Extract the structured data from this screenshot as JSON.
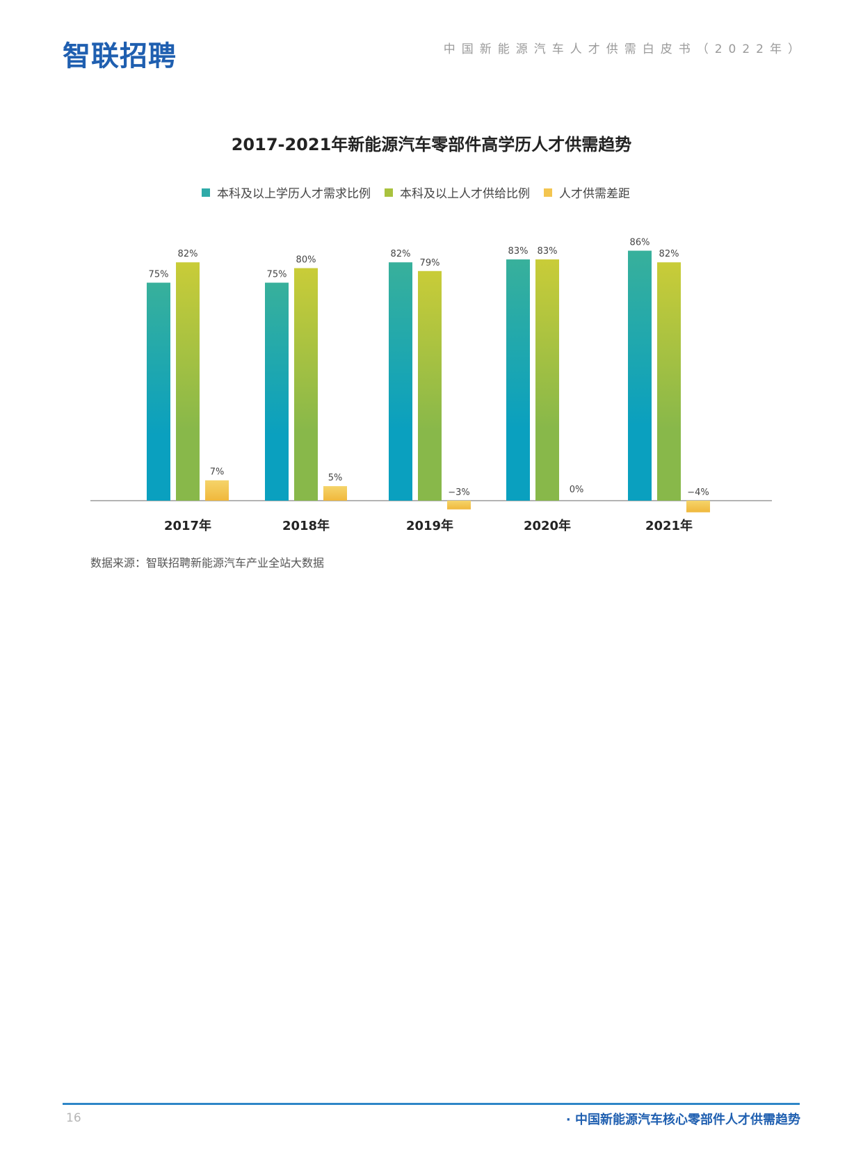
{
  "header": {
    "logo_text": "智联招聘",
    "doc_title": "中国新能源汽车人才供需白皮书（2022年）"
  },
  "chart_data": {
    "type": "bar",
    "title": "2017-2021年新能源汽车零部件高学历人才供需趋势",
    "categories": [
      "2017年",
      "2018年",
      "2019年",
      "2020年",
      "2021年"
    ],
    "series": [
      {
        "name": "本科及以上学历人才需求比例",
        "values": [
          75,
          75,
          82,
          83,
          86
        ],
        "labels": [
          "75%",
          "75%",
          "82%",
          "83%",
          "86%"
        ],
        "color_top": "#38b09b",
        "color_bottom": "#0aa0bf"
      },
      {
        "name": "本科及以上人才供给比例",
        "values": [
          82,
          80,
          79,
          83,
          82
        ],
        "labels": [
          "82%",
          "80%",
          "79%",
          "83%",
          "82%"
        ],
        "color_top": "#c9cc38",
        "color_bottom": "#88b84a"
      },
      {
        "name": "人才供需差距",
        "values": [
          7,
          5,
          -3,
          0,
          -4
        ],
        "labels": [
          "7%",
          "5%",
          "−3%",
          "0%",
          "−4%"
        ],
        "color_top": "#f5d46a",
        "color_bottom": "#f0b83c"
      }
    ],
    "ylim": [
      -5,
      90
    ],
    "grid": false,
    "legend_position": "top"
  },
  "source_note": "数据来源：智联招聘新能源汽车产业全站大数据",
  "footer": {
    "page_number": "16",
    "section_title": "· 中国新能源汽车核心零部件人才供需趋势"
  },
  "colors": {
    "brand_blue": "#1f5fb0",
    "footer_rule": "#2e86c8"
  }
}
